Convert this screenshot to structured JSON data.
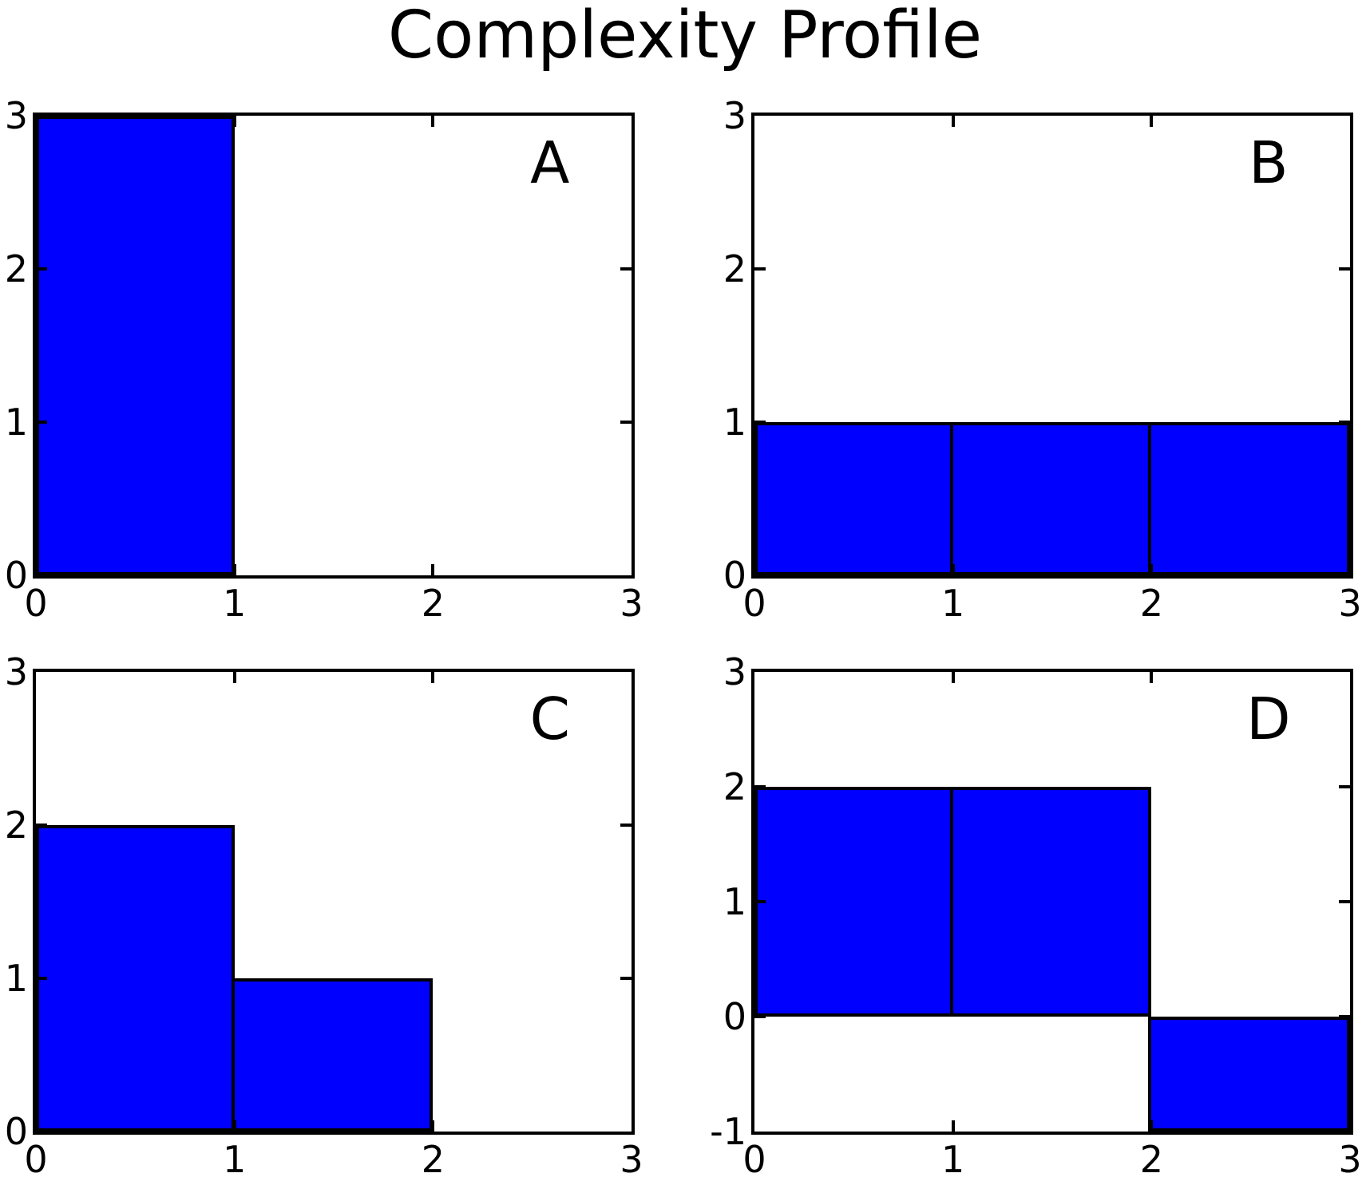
{
  "title": "Complexity Profile",
  "colors": {
    "bar_fill": "#0000ff",
    "bar_edge": "#000000",
    "axis": "#000000",
    "background": "#ffffff"
  },
  "chart_data": [
    {
      "type": "bar",
      "label": "A",
      "xlim": [
        0,
        3
      ],
      "ylim": [
        0,
        3
      ],
      "xticks": [
        0,
        1,
        2,
        3
      ],
      "yticks": [
        0,
        1,
        2,
        3
      ],
      "bars": [
        {
          "x0": 0,
          "x1": 1,
          "value": 3
        }
      ]
    },
    {
      "type": "bar",
      "label": "B",
      "xlim": [
        0,
        3
      ],
      "ylim": [
        0,
        3
      ],
      "xticks": [
        0,
        1,
        2,
        3
      ],
      "yticks": [
        0,
        1,
        2,
        3
      ],
      "bars": [
        {
          "x0": 0,
          "x1": 1,
          "value": 1
        },
        {
          "x0": 1,
          "x1": 2,
          "value": 1
        },
        {
          "x0": 2,
          "x1": 3,
          "value": 1
        }
      ]
    },
    {
      "type": "bar",
      "label": "C",
      "xlim": [
        0,
        3
      ],
      "ylim": [
        0,
        3
      ],
      "xticks": [
        0,
        1,
        2,
        3
      ],
      "yticks": [
        0,
        1,
        2,
        3
      ],
      "bars": [
        {
          "x0": 0,
          "x1": 1,
          "value": 2
        },
        {
          "x0": 1,
          "x1": 2,
          "value": 1
        }
      ]
    },
    {
      "type": "bar",
      "label": "D",
      "xlim": [
        0,
        3
      ],
      "ylim": [
        -1,
        3
      ],
      "xticks": [
        0,
        1,
        2,
        3
      ],
      "yticks": [
        -1,
        0,
        1,
        2,
        3
      ],
      "bars": [
        {
          "x0": 0,
          "x1": 1,
          "value": 2
        },
        {
          "x0": 1,
          "x1": 2,
          "value": 2
        },
        {
          "x0": 2,
          "x1": 3,
          "value": -1
        }
      ]
    }
  ]
}
